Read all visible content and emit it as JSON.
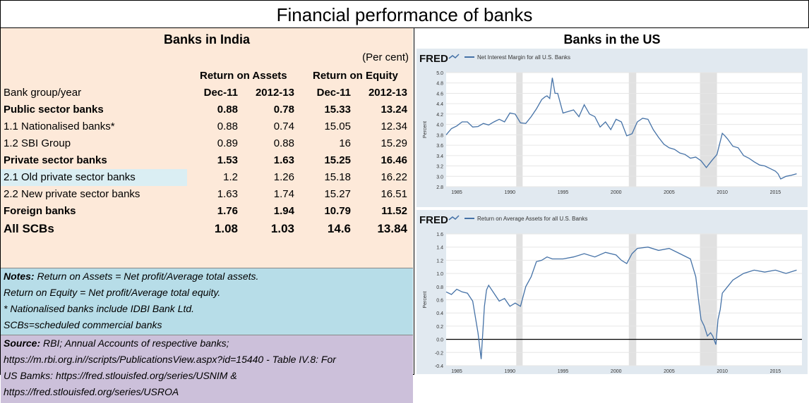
{
  "title": "Financial performance of banks",
  "india": {
    "heading": "Banks in India",
    "unit": "(Per cent)",
    "group_roa": "Return on Assets",
    "group_roe": "Return on Equity",
    "subhead": [
      "Bank group/year",
      "Dec-11",
      "2012-13",
      "Dec-11",
      "2012-13"
    ],
    "rows": [
      {
        "label": "Public sector banks",
        "v": [
          "0.88",
          "0.78",
          "15.33",
          "13.24"
        ],
        "bold": true
      },
      {
        "label": "1.1 Nationalised banks*",
        "v": [
          "0.88",
          "0.74",
          "15.05",
          "12.34"
        ],
        "bold": false
      },
      {
        "label": "1.2 SBI Group",
        "v": [
          "0.89",
          "0.88",
          "16",
          "15.29"
        ],
        "bold": false
      },
      {
        "label": "Private sector banks",
        "v": [
          "1.53",
          "1.63",
          "15.25",
          "16.46"
        ],
        "bold": true
      },
      {
        "label": "2.1 Old private sector banks",
        "v": [
          "1.2",
          "1.26",
          "15.18",
          "16.22"
        ],
        "bold": false
      },
      {
        "label": "2.2 New private sector banks",
        "v": [
          "1.63",
          "1.74",
          "15.27",
          "16.51"
        ],
        "bold": false
      },
      {
        "label": "Foreign banks",
        "v": [
          "1.76",
          "1.94",
          "10.79",
          "11.52"
        ],
        "bold": true
      },
      {
        "label": "All SCBs",
        "v": [
          "1.08",
          "1.03",
          "14.6",
          "13.84"
        ],
        "bold": true
      }
    ],
    "notes": {
      "label": "Notes:",
      "line1": " Return on Assets = Net profit/Average total assets.",
      "line2": "Return on Equity = Net profit/Average total equity.",
      "line3": "* Nationalised banks include IDBI Bank Ltd.",
      "line4": "SCBs=scheduled commercial banks"
    },
    "source": {
      "label": "Source:",
      "line1": " RBI; Annual Accounts of respective banks;",
      "line2": "https://m.rbi.org.in//scripts/PublicationsView.aspx?id=15440 - Table IV.8: For",
      "line3": "US Bamks: https://fred.stlouisfed.org/series/USNIM &",
      "line4": "https://fred.stlouisfed.org/series/USROA"
    }
  },
  "us": {
    "heading": "Banks in the US",
    "brand": "FRED"
  },
  "chart_data": [
    {
      "type": "line",
      "title": "Net Interest Margin for all U.S. Banks",
      "ylabel": "Percent",
      "xlim": [
        1984,
        2017.5
      ],
      "ylim": [
        2.8,
        5.0
      ],
      "y_ticks": [
        2.8,
        3.0,
        3.2,
        3.4,
        3.6,
        3.8,
        4.0,
        4.2,
        4.4,
        4.6,
        4.8,
        5.0
      ],
      "y_tick_labels": [
        "2.8",
        "3.0",
        "3.2",
        "3.4",
        "3.6",
        "3.8",
        "4.0",
        "4.2",
        "4.4",
        "4.6",
        "4.8",
        "5.0"
      ],
      "x_ticks": [
        1985,
        1990,
        1995,
        2000,
        2005,
        2010,
        2015
      ],
      "x_tick_labels": [
        "1985",
        "1990",
        "1995",
        "2000",
        "2005",
        "2010",
        "2015"
      ],
      "recessions": [
        [
          1990.6,
          1991.2
        ],
        [
          2001.2,
          2001.9
        ],
        [
          2007.9,
          2009.5
        ]
      ],
      "grid": true,
      "series": [
        {
          "color": "#4572a7",
          "x": [
            1984.0,
            1984.5,
            1985.0,
            1985.5,
            1986.0,
            1986.5,
            1987.0,
            1987.5,
            1988.0,
            1988.5,
            1989.0,
            1989.5,
            1990.0,
            1990.5,
            1991.0,
            1991.5,
            1992.0,
            1992.5,
            1993.0,
            1993.3,
            1993.5,
            1993.75,
            1994.0,
            1994.25,
            1994.5,
            1995.0,
            1995.5,
            1996.0,
            1996.5,
            1997.0,
            1997.5,
            1998.0,
            1998.5,
            1999.0,
            1999.5,
            2000.0,
            2000.5,
            2001.0,
            2001.5,
            2002.0,
            2002.5,
            2003.0,
            2003.5,
            2004.0,
            2004.5,
            2005.0,
            2005.5,
            2006.0,
            2006.5,
            2007.0,
            2007.5,
            2008.0,
            2008.5,
            2009.0,
            2009.5,
            2010.0,
            2010.25,
            2010.5,
            2011.0,
            2011.5,
            2012.0,
            2012.5,
            2013.0,
            2013.5,
            2014.0,
            2014.5,
            2015.0,
            2015.25,
            2015.5,
            2016.0,
            2016.5,
            2017.0
          ],
          "y": [
            3.8,
            3.92,
            3.97,
            4.05,
            4.05,
            3.95,
            3.96,
            4.02,
            3.99,
            4.05,
            4.1,
            4.05,
            4.22,
            4.2,
            4.03,
            4.02,
            4.15,
            4.3,
            4.48,
            4.53,
            4.55,
            4.5,
            4.9,
            4.6,
            4.6,
            4.22,
            4.25,
            4.28,
            4.15,
            4.38,
            4.2,
            4.15,
            3.95,
            4.05,
            3.9,
            4.1,
            4.05,
            3.78,
            3.82,
            4.05,
            4.12,
            4.1,
            3.9,
            3.75,
            3.62,
            3.55,
            3.52,
            3.45,
            3.42,
            3.35,
            3.37,
            3.3,
            3.17,
            3.3,
            3.42,
            3.83,
            3.78,
            3.72,
            3.58,
            3.55,
            3.4,
            3.35,
            3.28,
            3.22,
            3.2,
            3.15,
            3.1,
            3.05,
            2.95,
            3.0,
            3.02,
            3.05
          ]
        }
      ]
    },
    {
      "type": "line",
      "title": "Return on Average Assets for all U.S. Banks",
      "ylabel": "Percent",
      "xlim": [
        1984,
        2017.5
      ],
      "ylim": [
        -0.4,
        1.6
      ],
      "y_ticks": [
        -0.4,
        -0.2,
        0.0,
        0.2,
        0.4,
        0.6,
        0.8,
        1.0,
        1.2,
        1.4,
        1.6
      ],
      "y_tick_labels": [
        "-0.4",
        "-0.2",
        "0.0",
        "0.2",
        "0.4",
        "0.6",
        "0.8",
        "1.0",
        "1.2",
        "1.4",
        "1.6"
      ],
      "x_ticks": [
        1985,
        1990,
        1995,
        2000,
        2005,
        2010,
        2015
      ],
      "x_tick_labels": [
        "1985",
        "1990",
        "1995",
        "2000",
        "2005",
        "2010",
        "2015"
      ],
      "recessions": [
        [
          1990.6,
          1991.2
        ],
        [
          2001.2,
          2001.9
        ],
        [
          2007.9,
          2009.5
        ]
      ],
      "zero_line": true,
      "grid": true,
      "series": [
        {
          "color": "#4572a7",
          "x": [
            1984.0,
            1984.5,
            1985.0,
            1985.5,
            1986.0,
            1986.5,
            1987.0,
            1987.3,
            1987.6,
            1987.8,
            1988.0,
            1988.5,
            1989.0,
            1989.5,
            1990.0,
            1990.5,
            1991.0,
            1991.5,
            1992.0,
            1992.5,
            1993.0,
            1993.5,
            1994.0,
            1995.0,
            1996.0,
            1997.0,
            1998.0,
            1999.0,
            2000.0,
            2000.5,
            2001.0,
            2001.5,
            2002.0,
            2003.0,
            2004.0,
            2005.0,
            2006.0,
            2007.0,
            2007.5,
            2007.8,
            2008.0,
            2008.3,
            2008.6,
            2008.9,
            2009.1,
            2009.4,
            2009.6,
            2009.8,
            2010.0,
            2010.5,
            2011.0,
            2011.5,
            2012.0,
            2013.0,
            2014.0,
            2015.0,
            2016.0,
            2017.0
          ],
          "y": [
            0.72,
            0.68,
            0.76,
            0.72,
            0.7,
            0.58,
            0.1,
            -0.3,
            0.5,
            0.75,
            0.82,
            0.7,
            0.58,
            0.62,
            0.5,
            0.55,
            0.5,
            0.8,
            0.95,
            1.18,
            1.2,
            1.25,
            1.22,
            1.22,
            1.25,
            1.3,
            1.25,
            1.32,
            1.28,
            1.2,
            1.15,
            1.3,
            1.38,
            1.4,
            1.35,
            1.38,
            1.3,
            1.22,
            0.95,
            0.55,
            0.3,
            0.2,
            0.05,
            0.1,
            0.05,
            -0.08,
            0.3,
            0.45,
            0.7,
            0.8,
            0.9,
            0.95,
            1.0,
            1.05,
            1.02,
            1.05,
            1.0,
            1.05
          ]
        }
      ]
    }
  ]
}
